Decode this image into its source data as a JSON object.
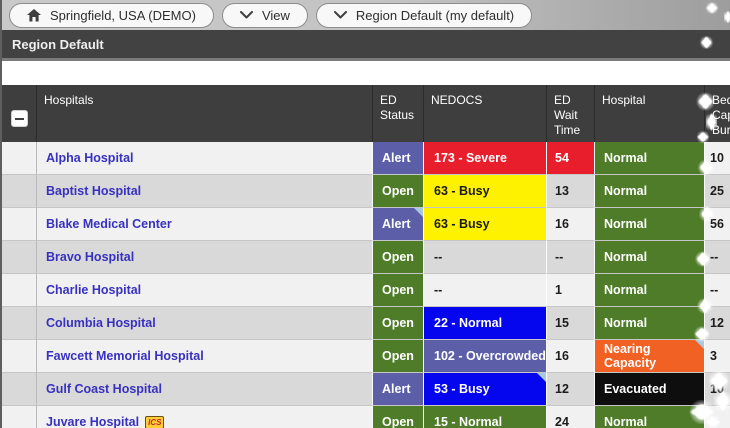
{
  "topbar": {
    "region_button": "Springfield, USA (DEMO)",
    "view_button": "View",
    "default_view_button": "Region Default (my default)"
  },
  "view_header": {
    "title": "Region Default"
  },
  "table": {
    "columns": [
      {
        "label": ""
      },
      {
        "label": "Hospitals"
      },
      {
        "label": "ED Status"
      },
      {
        "label": "NEDOCS"
      },
      {
        "label": "ED Wait Time"
      },
      {
        "label": "Hospital"
      },
      {
        "label": "Bed Cap Burn"
      }
    ],
    "rows": [
      {
        "name": "Alpha Hospital",
        "badge": "",
        "ed_status": {
          "text": "Alert",
          "color": "purple"
        },
        "nedocs": {
          "text": "173 - Severe",
          "color": "red"
        },
        "wait": {
          "text": "54",
          "color": "red"
        },
        "hospital": {
          "text": "Normal",
          "color": "green"
        },
        "bed": "10"
      },
      {
        "name": "Baptist Hospital",
        "badge": "",
        "ed_status": {
          "text": "Open",
          "color": "green"
        },
        "nedocs": {
          "text": "63 - Busy",
          "color": "yellow"
        },
        "wait": {
          "text": "13"
        },
        "hospital": {
          "text": "Normal",
          "color": "green"
        },
        "bed": "25"
      },
      {
        "name": "Blake Medical Center",
        "badge": "",
        "ed_status": {
          "text": "Alert",
          "color": "purple",
          "marker": true
        },
        "nedocs": {
          "text": "63 - Busy",
          "color": "yellow"
        },
        "wait": {
          "text": "16"
        },
        "hospital": {
          "text": "Normal",
          "color": "green"
        },
        "bed": "56"
      },
      {
        "name": "Bravo Hospital",
        "badge": "",
        "ed_status": {
          "text": "Open",
          "color": "green"
        },
        "nedocs": {
          "text": "--"
        },
        "wait": {
          "text": "--"
        },
        "hospital": {
          "text": "Normal",
          "color": "green"
        },
        "bed": "--"
      },
      {
        "name": "Charlie Hospital",
        "badge": "",
        "ed_status": {
          "text": "Open",
          "color": "green"
        },
        "nedocs": {
          "text": "--"
        },
        "wait": {
          "text": "1"
        },
        "hospital": {
          "text": "Normal",
          "color": "green"
        },
        "bed": "--"
      },
      {
        "name": "Columbia Hospital",
        "badge": "",
        "ed_status": {
          "text": "Open",
          "color": "green"
        },
        "nedocs": {
          "text": "22 - Normal",
          "color": "blue"
        },
        "wait": {
          "text": "15"
        },
        "hospital": {
          "text": "Normal",
          "color": "green"
        },
        "bed": "12"
      },
      {
        "name": "Fawcett Memorial Hospital",
        "badge": "",
        "ed_status": {
          "text": "Open",
          "color": "green"
        },
        "nedocs": {
          "text": "102 - Overcrowded",
          "color": "purple"
        },
        "wait": {
          "text": "16"
        },
        "hospital": {
          "text": "Nearing Capacity",
          "color": "orange",
          "marker": true
        },
        "bed": "3"
      },
      {
        "name": "Gulf Coast Hospital",
        "badge": "",
        "ed_status": {
          "text": "Alert",
          "color": "purple"
        },
        "nedocs": {
          "text": "53 - Busy",
          "color": "blue",
          "marker": true
        },
        "wait": {
          "text": "12"
        },
        "hospital": {
          "text": "Evacuated",
          "color": "black"
        },
        "bed": "10"
      },
      {
        "name": "Juvare Hospital",
        "badge": "ICS",
        "ed_status": {
          "text": "Open",
          "color": "green"
        },
        "nedocs": {
          "text": "15 - Normal",
          "color": "green"
        },
        "wait": {
          "text": "24"
        },
        "hospital": {
          "text": "Normal",
          "color": "green",
          "marker": true
        },
        "bed": ""
      }
    ]
  },
  "status_colors": {
    "purple": {
      "bg": "#5c5fa8",
      "fg": "#ffffff"
    },
    "green": {
      "bg": "#4e7c28",
      "fg": "#ffffff"
    },
    "red": {
      "bg": "#e81e2d",
      "fg": "#ffffff"
    },
    "yellow": {
      "bg": "#fef200",
      "fg": "#1a1a1a"
    },
    "blue": {
      "bg": "#0505ee",
      "fg": "#ffffff"
    },
    "orange": {
      "bg": "#f06123",
      "fg": "#ffffff"
    },
    "black": {
      "bg": "#0e0e0e",
      "fg": "#ffffff"
    }
  }
}
